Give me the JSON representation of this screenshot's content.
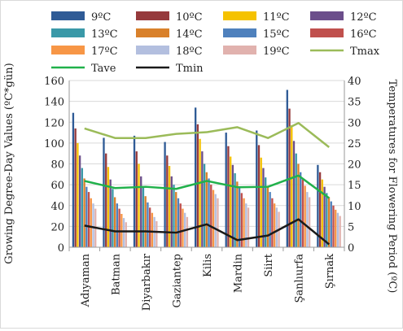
{
  "chart_data": {
    "type": "bar",
    "categories": [
      "Adıyaman",
      "Batman",
      "Diyarbakır",
      "Gaziantep",
      "Kilis",
      "Mardin",
      "Siirt",
      "Şanlıurfa",
      "Şırnak"
    ],
    "ylabel": "Growing Degree-Day Values (ºC*gün)",
    "y2label": "Temperatures for Flowering Period  (ºC)",
    "ylim": [
      0,
      160
    ],
    "yticks": [
      0,
      20,
      40,
      60,
      80,
      100,
      120,
      140,
      160
    ],
    "y2lim": [
      0,
      40
    ],
    "y2ticks": [
      0,
      5,
      10,
      15,
      20,
      25,
      30,
      35,
      40
    ],
    "legend_position": "top",
    "grid": true,
    "series": [
      {
        "name": "9ºC",
        "color": "#2f5b96",
        "values": [
          129,
          105,
          107,
          101,
          134,
          110,
          112,
          151,
          79
        ]
      },
      {
        "name": "10ºC",
        "color": "#963a3c",
        "values": [
          114,
          90,
          92,
          88,
          118,
          97,
          98,
          133,
          72
        ]
      },
      {
        "name": "11ºC",
        "color": "#f5c200",
        "values": [
          100,
          77,
          80,
          78,
          104,
          87,
          86,
          117,
          65
        ]
      },
      {
        "name": "12ºC",
        "color": "#6b4e8b",
        "values": [
          88,
          65,
          68,
          68,
          92,
          79,
          76,
          102,
          58
        ]
      },
      {
        "name": "13ºC",
        "color": "#3a99a8",
        "values": [
          76,
          56,
          57,
          60,
          80,
          71,
          67,
          90,
          52
        ]
      },
      {
        "name": "14ºC",
        "color": "#d9812b",
        "values": [
          66,
          48,
          49,
          53,
          72,
          63,
          59,
          80,
          48
        ]
      },
      {
        "name": "15ºC",
        "color": "#4f81bd",
        "values": [
          58,
          42,
          43,
          47,
          66,
          57,
          53,
          72,
          44
        ]
      },
      {
        "name": "16ºC",
        "color": "#c0504d",
        "values": [
          53,
          37,
          38,
          42,
          60,
          52,
          47,
          65,
          40
        ]
      },
      {
        "name": "17ºC",
        "color": "#f79646",
        "values": [
          47,
          32,
          33,
          37,
          55,
          47,
          42,
          59,
          36
        ]
      },
      {
        "name": "18ºC",
        "color": "#b3bfdf",
        "values": [
          42,
          28,
          29,
          33,
          51,
          42,
          38,
          53,
          33
        ]
      },
      {
        "name": "19ºC",
        "color": "#e1b2ae",
        "values": [
          37,
          24,
          25,
          29,
          47,
          38,
          34,
          48,
          30
        ]
      }
    ],
    "lines": [
      {
        "name": "Tmax",
        "color": "#9bbb59",
        "axis": "y2",
        "values": [
          28.5,
          26.2,
          26.2,
          27.2,
          27.6,
          28.8,
          26.2,
          29.8,
          24.0
        ]
      },
      {
        "name": "Tave",
        "color": "#21b14b",
        "axis": "y2",
        "values": [
          15.9,
          14.2,
          14.5,
          14.0,
          15.9,
          14.4,
          14.5,
          17.2,
          11.8
        ]
      },
      {
        "name": "Tmin",
        "color": "#1a1a1a",
        "axis": "y2",
        "values": [
          5.2,
          3.8,
          3.8,
          3.5,
          5.5,
          1.7,
          2.8,
          6.7,
          0.7
        ]
      }
    ]
  }
}
